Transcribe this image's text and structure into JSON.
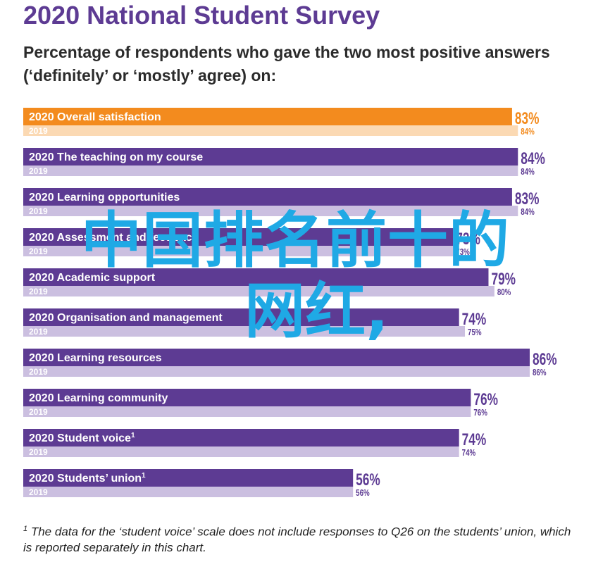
{
  "title": "2020 National Student Survey",
  "subtitle": "Percentage of respondents who gave the two most positive answers (‘definitely’ or ‘mostly’ agree) on:",
  "footnote": {
    "marker": "1",
    "text": " The data for the ‘student voice’ scale does not include responses to Q26 on the students’ union, which is reported separately in this chart."
  },
  "overlay": {
    "line1": "中国排名前十的",
    "line2": "网红,"
  },
  "colors": {
    "highlight_2020": "#f38b1e",
    "highlight_2019": "#fbd9b3",
    "bar_2020": "#5d3b93",
    "bar_2019": "#cbbfe0",
    "label_2020_text": "#ffffff",
    "label_2019_text": "#ffffff",
    "value_text": "#5d3b93",
    "highlight_value_text": "#f38b1e",
    "overlay_text": "#1fa9e5"
  },
  "chart_data": {
    "type": "bar",
    "orientation": "horizontal",
    "title": "2020 National Student Survey",
    "series": [
      {
        "name": "2020",
        "values": [
          83,
          84,
          83,
          73,
          79,
          74,
          86,
          76,
          74,
          56
        ]
      },
      {
        "name": "2019",
        "values": [
          84,
          84,
          84,
          73,
          80,
          75,
          86,
          76,
          74,
          56
        ]
      }
    ],
    "categories": [
      "Overall satisfaction",
      "The teaching on my course",
      "Learning opportunities",
      "Assessment and feedback",
      "Academic support",
      "Organisation and management",
      "Learning resources",
      "Learning community",
      "Student voice",
      "Students’ union"
    ],
    "category_superscripts": [
      "",
      "",
      "",
      "",
      "",
      "",
      "",
      "",
      "1",
      "1"
    ],
    "value_labels_2020": [
      "83%",
      "84%",
      "83%",
      "73%",
      "79%",
      "74%",
      "86%",
      "76%",
      "74%",
      "56%"
    ],
    "value_labels_2019": [
      "84%",
      "84%",
      "84%",
      "73%",
      "80%",
      "75%",
      "86%",
      "76%",
      "74%",
      "56%"
    ],
    "highlighted_category": "Overall satisfaction",
    "xlim": [
      0,
      100
    ],
    "grid": false,
    "legend": "none"
  }
}
